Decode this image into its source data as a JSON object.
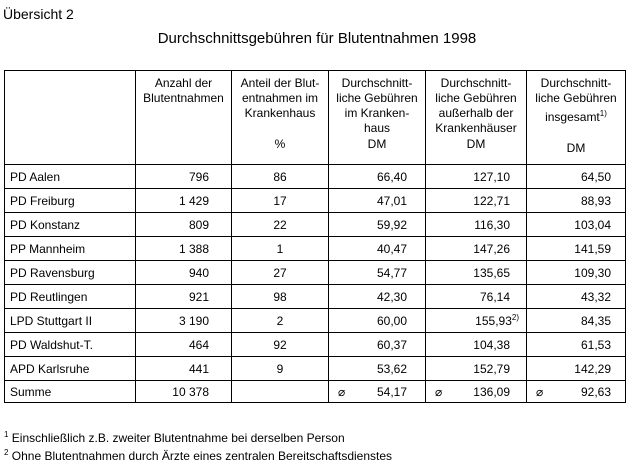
{
  "overview_label": "Übersicht 2",
  "title": "Durchschnittsgebühren für Blutentnahmen 1998",
  "headers": {
    "col1": [
      "Anzahl der",
      "Blutentnahmen"
    ],
    "col2": [
      "Anteil der Blut-",
      "entnahmen im",
      "Krankenhaus"
    ],
    "col2_unit": "%",
    "col3": [
      "Durchschnitt-",
      "liche Gebühren",
      "im Kranken-",
      "haus"
    ],
    "col3_unit": "DM",
    "col4": [
      "Durchschnitt-",
      "liche Gebühren",
      "außerhalb der",
      "Krankenhäuser"
    ],
    "col4_unit": "DM",
    "col5": [
      "Durchschnitt-",
      "liche Gebühren",
      "insgesamt"
    ],
    "col5_sup": "1)",
    "col5_unit": "DM"
  },
  "rows": [
    {
      "name": "PD Aalen",
      "count": "796",
      "share": "86",
      "in_hospital": "66,40",
      "outside": "127,10",
      "total": "64,50"
    },
    {
      "name": "PD Freiburg",
      "count": "1 429",
      "share": "17",
      "in_hospital": "47,01",
      "outside": "122,71",
      "total": "88,93"
    },
    {
      "name": "PD Konstanz",
      "count": "809",
      "share": "22",
      "in_hospital": "59,92",
      "outside": "116,30",
      "total": "103,04"
    },
    {
      "name": "PP Mannheim",
      "count": "1 388",
      "share": "1",
      "in_hospital": "40,47",
      "outside": "147,26",
      "total": "141,59"
    },
    {
      "name": "PD Ravensburg",
      "count": "940",
      "share": "27",
      "in_hospital": "54,77",
      "outside": "135,65",
      "total": "109,30"
    },
    {
      "name": "PD Reutlingen",
      "count": "921",
      "share": "98",
      "in_hospital": "42,30",
      "outside": "76,14",
      "total": "43,32"
    },
    {
      "name": "LPD Stuttgart II",
      "count": "3 190",
      "share": "2",
      "in_hospital": "60,00",
      "outside": "155,93",
      "outside_sup": "2)",
      "total": "84,35"
    },
    {
      "name": "PD Waldshut-T.",
      "count": "464",
      "share": "92",
      "in_hospital": "60,37",
      "outside": "104,38",
      "total": "61,53"
    },
    {
      "name": "APD Karlsruhe",
      "count": "441",
      "share": "9",
      "in_hospital": "53,62",
      "outside": "152,79",
      "total": "142,29"
    }
  ],
  "sum": {
    "name": "Summe",
    "count": "10 378",
    "share": "",
    "avg_symbol": "⌀",
    "in_hospital": "54,17",
    "outside": "136,09",
    "total": "92,63"
  },
  "footnotes": [
    {
      "mark": "1",
      "text": "Einschließlich z.B. zweiter Blutentnahme bei derselben Person"
    },
    {
      "mark": "2",
      "text": "Ohne Blutentnahmen durch Ärzte eines zentralen Bereitschaftsdienstes"
    }
  ]
}
